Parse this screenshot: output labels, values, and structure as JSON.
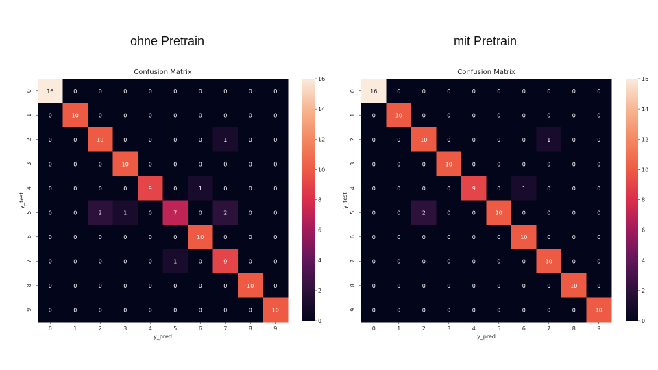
{
  "slides": {
    "left_title": "ohne Pretrain",
    "right_title": "mit Pretrain"
  },
  "chart_data": [
    {
      "type": "heatmap",
      "title": "Confusion Matrix",
      "xlabel": "y_pred",
      "ylabel": "y_test",
      "x_categories": [
        "0",
        "1",
        "2",
        "3",
        "4",
        "5",
        "6",
        "7",
        "8",
        "9"
      ],
      "y_categories": [
        "0",
        "1",
        "2",
        "3",
        "4",
        "5",
        "6",
        "7",
        "8",
        "9"
      ],
      "values": [
        [
          16,
          0,
          0,
          0,
          0,
          0,
          0,
          0,
          0,
          0
        ],
        [
          0,
          10,
          0,
          0,
          0,
          0,
          0,
          0,
          0,
          0
        ],
        [
          0,
          0,
          10,
          0,
          0,
          0,
          0,
          1,
          0,
          0
        ],
        [
          0,
          0,
          0,
          10,
          0,
          0,
          0,
          0,
          0,
          0
        ],
        [
          0,
          0,
          0,
          0,
          9,
          0,
          1,
          0,
          0,
          0
        ],
        [
          0,
          0,
          2,
          1,
          0,
          7,
          0,
          2,
          0,
          0
        ],
        [
          0,
          0,
          0,
          0,
          0,
          0,
          10,
          0,
          0,
          0
        ],
        [
          0,
          0,
          0,
          0,
          0,
          1,
          0,
          9,
          0,
          0
        ],
        [
          0,
          0,
          0,
          0,
          0,
          0,
          0,
          0,
          10,
          0
        ],
        [
          0,
          0,
          0,
          0,
          0,
          0,
          0,
          0,
          0,
          10
        ]
      ],
      "colorbar": {
        "min": 0,
        "max": 16,
        "ticks": [
          0,
          2,
          4,
          6,
          8,
          10,
          12,
          14,
          16
        ]
      },
      "colormap": "rocket"
    },
    {
      "type": "heatmap",
      "title": "Confusion Matrix",
      "xlabel": "y_pred",
      "ylabel": "y_test",
      "x_categories": [
        "0",
        "1",
        "2",
        "3",
        "4",
        "5",
        "6",
        "7",
        "8",
        "9"
      ],
      "y_categories": [
        "0",
        "1",
        "2",
        "3",
        "4",
        "5",
        "6",
        "7",
        "8",
        "9"
      ],
      "values": [
        [
          16,
          0,
          0,
          0,
          0,
          0,
          0,
          0,
          0,
          0
        ],
        [
          0,
          10,
          0,
          0,
          0,
          0,
          0,
          0,
          0,
          0
        ],
        [
          0,
          0,
          10,
          0,
          0,
          0,
          0,
          1,
          0,
          0
        ],
        [
          0,
          0,
          0,
          10,
          0,
          0,
          0,
          0,
          0,
          0
        ],
        [
          0,
          0,
          0,
          0,
          9,
          0,
          1,
          0,
          0,
          0
        ],
        [
          0,
          0,
          2,
          0,
          0,
          10,
          0,
          0,
          0,
          0
        ],
        [
          0,
          0,
          0,
          0,
          0,
          0,
          10,
          0,
          0,
          0
        ],
        [
          0,
          0,
          0,
          0,
          0,
          0,
          0,
          10,
          0,
          0
        ],
        [
          0,
          0,
          0,
          0,
          0,
          0,
          0,
          0,
          10,
          0
        ],
        [
          0,
          0,
          0,
          0,
          0,
          0,
          0,
          0,
          0,
          10
        ]
      ],
      "colorbar": {
        "min": 0,
        "max": 16,
        "ticks": [
          0,
          2,
          4,
          6,
          8,
          10,
          12,
          14,
          16
        ]
      },
      "colormap": "rocket"
    }
  ]
}
